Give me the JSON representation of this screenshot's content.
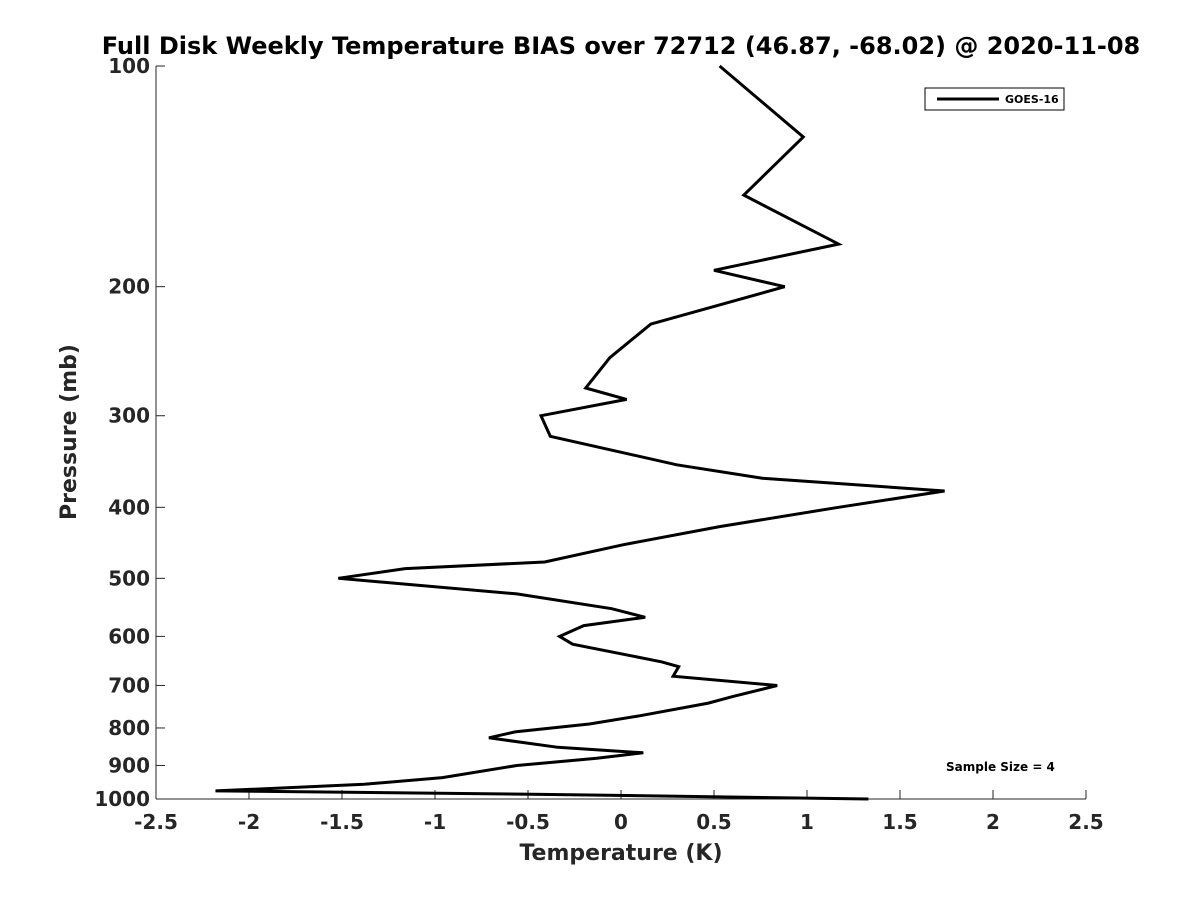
{
  "chart_data": {
    "type": "line",
    "title": "Full Disk Weekly Temperature BIAS over 72712 (46.87, -68.02) @ 2020-11-08",
    "xlabel": "Temperature (K)",
    "ylabel": "Pressure (mb)",
    "xlim": [
      -2.5,
      2.5
    ],
    "ylim": [
      100,
      1000
    ],
    "y_scale": "log",
    "y_reversed": true,
    "x_ticks": [
      "-2.5",
      "-2",
      "-1.5",
      "-1",
      "-0.5",
      "0",
      "0.5",
      "1",
      "1.5",
      "2",
      "2.5"
    ],
    "y_ticks": [
      "100",
      "200",
      "300",
      "400",
      "500",
      "600",
      "700",
      "800",
      "900",
      "1000"
    ],
    "grid": false,
    "legend_position": "top-right",
    "series": [
      {
        "name": "GOES-16",
        "color": "#000000",
        "points": [
          [
            0.53,
            100
          ],
          [
            0.98,
            125
          ],
          [
            0.66,
            150
          ],
          [
            1.17,
            175
          ],
          [
            0.5,
            190
          ],
          [
            0.88,
            200
          ],
          [
            0.16,
            225
          ],
          [
            -0.06,
            250
          ],
          [
            -0.19,
            275
          ],
          [
            0.03,
            285
          ],
          [
            -0.43,
            300
          ],
          [
            -0.38,
            320
          ],
          [
            0.3,
            350
          ],
          [
            0.76,
            365
          ],
          [
            1.74,
            380
          ],
          [
            1.17,
            400
          ],
          [
            0.53,
            425
          ],
          [
            0.01,
            450
          ],
          [
            -0.41,
            475
          ],
          [
            -1.16,
            485
          ],
          [
            -1.52,
            500
          ],
          [
            -0.56,
            525
          ],
          [
            -0.05,
            550
          ],
          [
            0.13,
            565
          ],
          [
            -0.2,
            580
          ],
          [
            -0.33,
            600
          ],
          [
            -0.26,
            615
          ],
          [
            0.22,
            650
          ],
          [
            0.31,
            660
          ],
          [
            0.28,
            680
          ],
          [
            0.84,
            700
          ],
          [
            0.6,
            725
          ],
          [
            0.47,
            740
          ],
          [
            0.1,
            770
          ],
          [
            -0.17,
            790
          ],
          [
            -0.57,
            810
          ],
          [
            -0.71,
            825
          ],
          [
            -0.34,
            850
          ],
          [
            0.12,
            865
          ],
          [
            -0.13,
            880
          ],
          [
            -0.56,
            900
          ],
          [
            -0.96,
            935
          ],
          [
            -1.38,
            955
          ],
          [
            -2.18,
            975
          ],
          [
            -0.48,
            985
          ],
          [
            1.33,
            1000
          ]
        ]
      }
    ],
    "annotation": "Sample Size = 4"
  }
}
